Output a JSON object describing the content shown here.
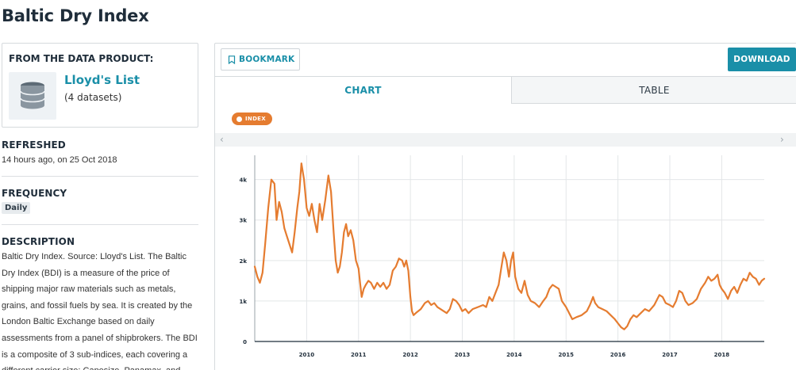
{
  "page": {
    "title": "Baltic Dry Index"
  },
  "product": {
    "heading": "FROM THE DATA PRODUCT:",
    "name": "Lloyd's List",
    "datasets": "(4 datasets)",
    "icon": "database-icon"
  },
  "meta": {
    "refreshed_label": "REFRESHED",
    "refreshed_value": "14 hours ago, on 25 Oct 2018",
    "frequency_label": "FREQUENCY",
    "frequency_value": "Daily",
    "description_label": "DESCRIPTION",
    "description_lines": [
      "Baltic Dry Index. Source: Lloyd's List. The Baltic",
      "Dry Index (BDI) is a measure of the price of",
      "shipping major raw materials such as metals,",
      "grains, and fossil fuels by sea. It is created by the",
      "London Baltic Exchange based on daily",
      "assessments from a panel of shipbrokers. The BDI",
      "is a composite of 3 sub-indices, each covering a",
      "different carrier size: Capesize, Panamax, and"
    ]
  },
  "toolbar": {
    "bookmark_label": "BOOKMARK",
    "bookmark_icon": "bookmark-icon",
    "download_label": "DOWNLOAD"
  },
  "tabs": [
    {
      "label": "CHART",
      "active": true
    },
    {
      "label": "TABLE",
      "active": false
    }
  ],
  "legend": {
    "chip_label": "INDEX",
    "color": "#e57c30"
  },
  "scroll": {
    "left_glyph": "‹",
    "right_glyph": "›"
  },
  "colors": {
    "accent": "#1a8fa8",
    "series": "#e57c30",
    "grid": "#e3e6e8"
  },
  "chart_data": {
    "type": "line",
    "title": "",
    "xlabel": "",
    "ylabel": "",
    "x_domain": [
      2009.0,
      2018.82
    ],
    "ylim": [
      0,
      4600
    ],
    "x_ticks": [
      {
        "value": 2010,
        "label": "2010"
      },
      {
        "value": 2011,
        "label": "2011"
      },
      {
        "value": 2012,
        "label": "2012"
      },
      {
        "value": 2013,
        "label": "2013"
      },
      {
        "value": 2014,
        "label": "2014"
      },
      {
        "value": 2015,
        "label": "2015"
      },
      {
        "value": 2016,
        "label": "2016"
      },
      {
        "value": 2017,
        "label": "2017"
      },
      {
        "value": 2018,
        "label": "2018"
      }
    ],
    "y_ticks": [
      {
        "value": 0,
        "label": "0"
      },
      {
        "value": 1000,
        "label": "1k"
      },
      {
        "value": 2000,
        "label": "2k"
      },
      {
        "value": 3000,
        "label": "3k"
      },
      {
        "value": 4000,
        "label": "4k"
      }
    ],
    "grid": true,
    "legend": "top-left",
    "series": [
      {
        "name": "INDEX",
        "color": "#e57c30",
        "points": [
          [
            2009.0,
            1850
          ],
          [
            2009.05,
            1600
          ],
          [
            2009.1,
            1450
          ],
          [
            2009.15,
            1700
          ],
          [
            2009.2,
            2400
          ],
          [
            2009.26,
            3300
          ],
          [
            2009.32,
            4000
          ],
          [
            2009.38,
            3900
          ],
          [
            2009.42,
            3000
          ],
          [
            2009.47,
            3450
          ],
          [
            2009.52,
            3200
          ],
          [
            2009.57,
            2800
          ],
          [
            2009.62,
            2600
          ],
          [
            2009.67,
            2400
          ],
          [
            2009.72,
            2200
          ],
          [
            2009.77,
            2700
          ],
          [
            2009.82,
            3300
          ],
          [
            2009.86,
            3700
          ],
          [
            2009.9,
            4400
          ],
          [
            2009.95,
            4000
          ],
          [
            2010.0,
            3300
          ],
          [
            2010.05,
            3100
          ],
          [
            2010.1,
            3400
          ],
          [
            2010.15,
            3000
          ],
          [
            2010.2,
            2700
          ],
          [
            2010.25,
            3400
          ],
          [
            2010.3,
            3000
          ],
          [
            2010.36,
            3500
          ],
          [
            2010.42,
            4100
          ],
          [
            2010.47,
            3700
          ],
          [
            2010.52,
            2700
          ],
          [
            2010.56,
            2000
          ],
          [
            2010.6,
            1700
          ],
          [
            2010.64,
            1850
          ],
          [
            2010.68,
            2200
          ],
          [
            2010.72,
            2700
          ],
          [
            2010.76,
            2900
          ],
          [
            2010.8,
            2600
          ],
          [
            2010.85,
            2750
          ],
          [
            2010.9,
            2500
          ],
          [
            2010.95,
            2000
          ],
          [
            2011.0,
            1800
          ],
          [
            2011.03,
            1450
          ],
          [
            2011.06,
            1100
          ],
          [
            2011.1,
            1300
          ],
          [
            2011.14,
            1400
          ],
          [
            2011.19,
            1500
          ],
          [
            2011.24,
            1450
          ],
          [
            2011.3,
            1300
          ],
          [
            2011.36,
            1450
          ],
          [
            2011.42,
            1350
          ],
          [
            2011.48,
            1450
          ],
          [
            2011.54,
            1300
          ],
          [
            2011.6,
            1400
          ],
          [
            2011.66,
            1750
          ],
          [
            2011.72,
            1850
          ],
          [
            2011.78,
            2050
          ],
          [
            2011.84,
            2000
          ],
          [
            2011.88,
            1850
          ],
          [
            2011.92,
            2000
          ],
          [
            2011.96,
            1750
          ],
          [
            2012.0,
            1100
          ],
          [
            2012.03,
            750
          ],
          [
            2012.06,
            650
          ],
          [
            2012.12,
            720
          ],
          [
            2012.2,
            800
          ],
          [
            2012.28,
            950
          ],
          [
            2012.34,
            1000
          ],
          [
            2012.4,
            900
          ],
          [
            2012.46,
            950
          ],
          [
            2012.52,
            850
          ],
          [
            2012.58,
            800
          ],
          [
            2012.64,
            750
          ],
          [
            2012.7,
            700
          ],
          [
            2012.76,
            800
          ],
          [
            2012.82,
            1050
          ],
          [
            2012.88,
            1000
          ],
          [
            2012.94,
            900
          ],
          [
            2013.0,
            750
          ],
          [
            2013.06,
            800
          ],
          [
            2013.12,
            700
          ],
          [
            2013.2,
            800
          ],
          [
            2013.3,
            850
          ],
          [
            2013.4,
            900
          ],
          [
            2013.46,
            850
          ],
          [
            2013.52,
            1100
          ],
          [
            2013.58,
            1000
          ],
          [
            2013.64,
            1200
          ],
          [
            2013.7,
            1400
          ],
          [
            2013.75,
            1800
          ],
          [
            2013.8,
            2200
          ],
          [
            2013.85,
            2000
          ],
          [
            2013.9,
            1600
          ],
          [
            2013.94,
            2000
          ],
          [
            2013.98,
            2200
          ],
          [
            2014.02,
            1600
          ],
          [
            2014.08,
            1300
          ],
          [
            2014.14,
            1200
          ],
          [
            2014.2,
            1500
          ],
          [
            2014.26,
            1150
          ],
          [
            2014.32,
            1000
          ],
          [
            2014.4,
            950
          ],
          [
            2014.48,
            850
          ],
          [
            2014.56,
            1000
          ],
          [
            2014.62,
            1100
          ],
          [
            2014.68,
            1300
          ],
          [
            2014.74,
            1400
          ],
          [
            2014.8,
            1350
          ],
          [
            2014.86,
            1300
          ],
          [
            2014.92,
            1000
          ],
          [
            2015.0,
            850
          ],
          [
            2015.06,
            700
          ],
          [
            2015.12,
            550
          ],
          [
            2015.2,
            600
          ],
          [
            2015.3,
            650
          ],
          [
            2015.4,
            750
          ],
          [
            2015.46,
            900
          ],
          [
            2015.52,
            1100
          ],
          [
            2015.56,
            950
          ],
          [
            2015.62,
            850
          ],
          [
            2015.7,
            800
          ],
          [
            2015.78,
            750
          ],
          [
            2015.86,
            650
          ],
          [
            2015.94,
            550
          ],
          [
            2016.0,
            450
          ],
          [
            2016.06,
            350
          ],
          [
            2016.12,
            300
          ],
          [
            2016.18,
            380
          ],
          [
            2016.24,
            550
          ],
          [
            2016.3,
            650
          ],
          [
            2016.36,
            600
          ],
          [
            2016.44,
            700
          ],
          [
            2016.52,
            800
          ],
          [
            2016.6,
            750
          ],
          [
            2016.7,
            900
          ],
          [
            2016.8,
            1150
          ],
          [
            2016.86,
            1100
          ],
          [
            2016.92,
            950
          ],
          [
            2017.0,
            900
          ],
          [
            2017.06,
            850
          ],
          [
            2017.12,
            1000
          ],
          [
            2017.18,
            1250
          ],
          [
            2017.24,
            1200
          ],
          [
            2017.3,
            1000
          ],
          [
            2017.36,
            900
          ],
          [
            2017.44,
            950
          ],
          [
            2017.52,
            1050
          ],
          [
            2017.6,
            1300
          ],
          [
            2017.68,
            1450
          ],
          [
            2017.74,
            1600
          ],
          [
            2017.8,
            1500
          ],
          [
            2017.86,
            1550
          ],
          [
            2017.92,
            1650
          ],
          [
            2017.96,
            1400
          ],
          [
            2018.0,
            1300
          ],
          [
            2018.06,
            1200
          ],
          [
            2018.12,
            1050
          ],
          [
            2018.18,
            1250
          ],
          [
            2018.24,
            1350
          ],
          [
            2018.3,
            1200
          ],
          [
            2018.36,
            1400
          ],
          [
            2018.42,
            1550
          ],
          [
            2018.48,
            1500
          ],
          [
            2018.54,
            1700
          ],
          [
            2018.6,
            1600
          ],
          [
            2018.66,
            1550
          ],
          [
            2018.72,
            1400
          ],
          [
            2018.77,
            1500
          ],
          [
            2018.82,
            1550
          ]
        ]
      }
    ]
  }
}
